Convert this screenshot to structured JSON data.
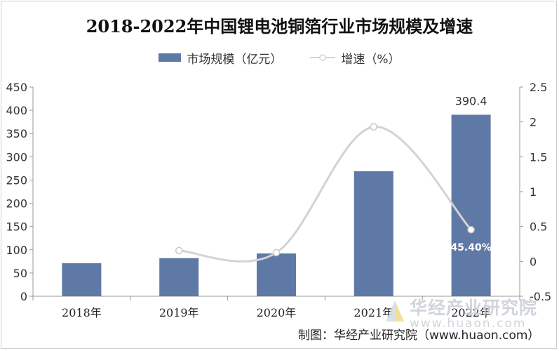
{
  "title": "2018-2022年中国锂电池铜箔行业市场规模及增速",
  "legend": {
    "bar_label": "市场规模（亿元）",
    "line_label": "增速（%）"
  },
  "source_note": "制图：华经产业研究院（www.huaon.com）",
  "watermark": {
    "name": "华经产业研究院",
    "url": "www.huaon.com"
  },
  "colors": {
    "bar": "#5f79a6",
    "line": "#d3d3d3",
    "marker_fill": "#ffffff"
  },
  "chart_data": {
    "type": "bar",
    "categories": [
      "2018年",
      "2019年",
      "2020年",
      "2021年",
      "2022年"
    ],
    "series": [
      {
        "name": "市场规模（亿元）",
        "type": "bar",
        "axis": "left",
        "values": [
          71,
          82,
          92,
          269,
          390.4
        ]
      },
      {
        "name": "增速（%）",
        "type": "line",
        "axis": "right",
        "smooth": true,
        "values": [
          null,
          0.155,
          0.125,
          1.93,
          0.454
        ]
      }
    ],
    "data_labels": [
      {
        "series": 0,
        "index": 4,
        "text": "390.4"
      },
      {
        "series": 1,
        "index": 4,
        "text": "45.40%"
      }
    ],
    "ylim_left": [
      0,
      450
    ],
    "yticks_left": [
      "0",
      "50",
      "100",
      "150",
      "200",
      "250",
      "300",
      "350",
      "400",
      "450"
    ],
    "ylim_right": [
      -0.5,
      2.5
    ],
    "yticks_right": [
      "-0.5",
      "0",
      "0.5",
      "1",
      "1.5",
      "2",
      "2.5"
    ],
    "legend_position": "top",
    "grid": false
  }
}
